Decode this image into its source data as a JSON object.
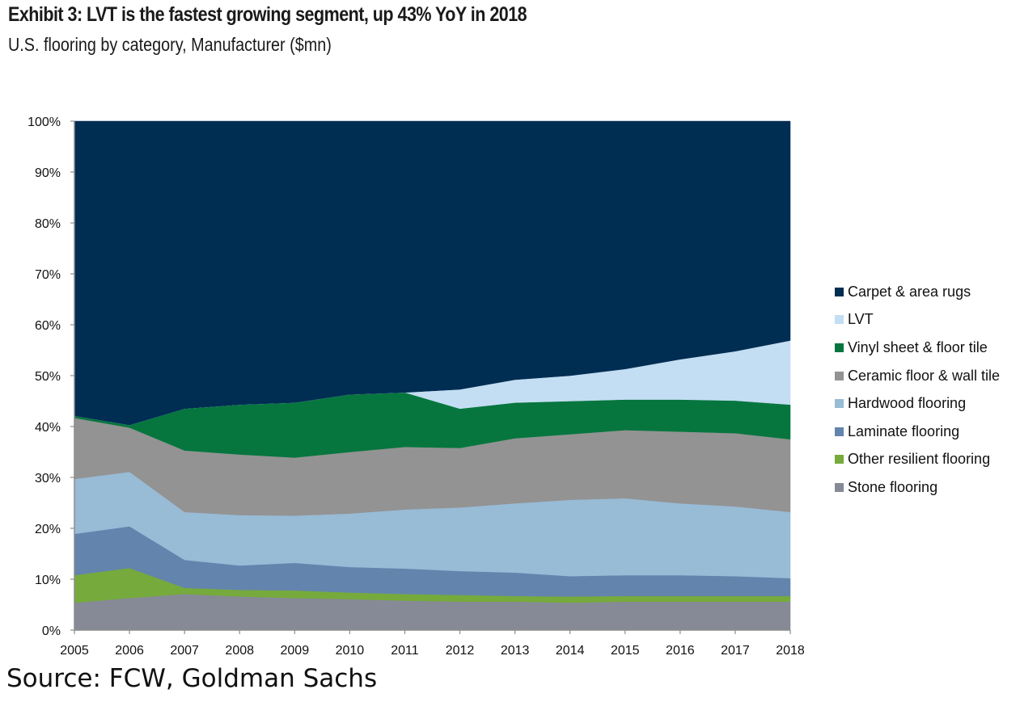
{
  "header": {
    "title": "Exhibit 3: LVT is the fastest growing segment, up 43% YoY in 2018",
    "subtitle": "U.S. flooring by category, Manufacturer ($mn)"
  },
  "footer": {
    "source": "Source: FCW, Goldman Sachs"
  },
  "chart_data": {
    "type": "area",
    "stacked": true,
    "normalized_percent": true,
    "title": "Exhibit 3: LVT is the fastest growing segment, up 43% YoY in 2018",
    "subtitle": "U.S. flooring by category, Manufacturer ($mn)",
    "xlabel": "",
    "ylabel": "",
    "x": [
      "2005",
      "2006",
      "2007",
      "2008",
      "2009",
      "2010",
      "2011",
      "2012",
      "2013",
      "2014",
      "2015",
      "2016",
      "2017",
      "2018"
    ],
    "ylim": [
      0,
      100
    ],
    "yticks": [
      "0%",
      "10%",
      "20%",
      "30%",
      "40%",
      "50%",
      "60%",
      "70%",
      "80%",
      "90%",
      "100%"
    ],
    "grid": false,
    "legend_position": "right",
    "series": [
      {
        "name": "Stone flooring",
        "color": "#858A96",
        "values": [
          5.4,
          6.3,
          7.1,
          6.6,
          6.3,
          6.1,
          5.8,
          5.6,
          5.6,
          5.4,
          5.6,
          5.6,
          5.6,
          5.6
        ]
      },
      {
        "name": "Other resilient flooring",
        "color": "#76AA3C",
        "values": [
          5.4,
          5.9,
          1.2,
          1.3,
          1.5,
          1.3,
          1.3,
          1.3,
          1.1,
          1.2,
          1.1,
          1.1,
          1.1,
          1.1
        ]
      },
      {
        "name": "Laminate flooring",
        "color": "#6384AD",
        "values": [
          8.1,
          8.2,
          5.5,
          4.8,
          5.4,
          5.0,
          5.0,
          4.7,
          4.6,
          4.0,
          4.1,
          4.1,
          3.9,
          3.5
        ]
      },
      {
        "name": "Hardwood flooring",
        "color": "#98BBD6",
        "values": [
          10.8,
          10.7,
          9.4,
          9.9,
          9.3,
          10.5,
          11.6,
          12.5,
          13.6,
          15.0,
          15.1,
          14.1,
          13.7,
          13.0
        ]
      },
      {
        "name": "Ceramic floor & wall tile",
        "color": "#939393",
        "values": [
          12.0,
          8.7,
          12.1,
          11.9,
          11.4,
          12.1,
          12.3,
          11.7,
          12.8,
          12.9,
          13.4,
          14.1,
          14.4,
          14.3
        ]
      },
      {
        "name": "Vinyl sheet & floor tile",
        "color": "#06763E",
        "values": [
          0.4,
          0.5,
          8.2,
          9.8,
          10.8,
          11.3,
          10.7,
          7.7,
          7.0,
          6.5,
          6.0,
          6.3,
          6.4,
          6.8
        ]
      },
      {
        "name": "LVT",
        "color": "#C3DDF2",
        "values": [
          0,
          0,
          0,
          0,
          0,
          0,
          0,
          3.8,
          4.5,
          5.0,
          6.0,
          7.9,
          9.7,
          12.6
        ]
      },
      {
        "name": "Carpet & area rugs",
        "color": "#002D52",
        "values": [
          57.9,
          59.7,
          56.5,
          55.7,
          55.3,
          53.7,
          53.3,
          52.7,
          50.8,
          50.0,
          48.7,
          46.8,
          45.2,
          43.1
        ]
      }
    ],
    "legend": [
      "Carpet & area rugs",
      "LVT",
      "Vinyl sheet & floor tile",
      "Ceramic floor & wall tile",
      "Hardwood flooring",
      "Laminate flooring",
      "Other resilient flooring",
      "Stone flooring"
    ]
  }
}
